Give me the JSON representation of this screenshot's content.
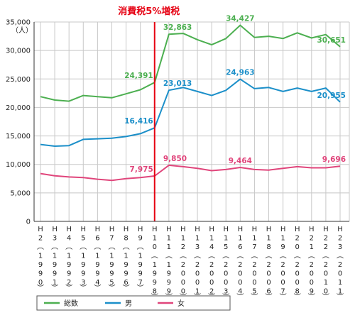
{
  "chart_data": {
    "type": "line",
    "unit_label": "（人）",
    "annotation": "消費税5%増税",
    "annotation_x_index": 8,
    "ylim": [
      0,
      35000
    ],
    "yticks": [
      "0",
      "5,000",
      "10,000",
      "15,000",
      "20,000",
      "25,000",
      "30,000",
      "35,000"
    ],
    "ytick_values": [
      0,
      5000,
      10000,
      15000,
      20000,
      25000,
      30000,
      35000
    ],
    "grid": true,
    "legend_position": "bottom",
    "categories": [
      {
        "era": [
          "H",
          "2"
        ],
        "year": [
          "1",
          "9",
          "9",
          "0"
        ]
      },
      {
        "era": [
          "H",
          "3"
        ],
        "year": [
          "1",
          "9",
          "9",
          "1"
        ]
      },
      {
        "era": [
          "H",
          "4"
        ],
        "year": [
          "1",
          "9",
          "9",
          "2"
        ]
      },
      {
        "era": [
          "H",
          "5"
        ],
        "year": [
          "1",
          "9",
          "9",
          "3"
        ]
      },
      {
        "era": [
          "H",
          "6"
        ],
        "year": [
          "1",
          "9",
          "9",
          "4"
        ]
      },
      {
        "era": [
          "H",
          "7"
        ],
        "year": [
          "1",
          "9",
          "9",
          "5"
        ]
      },
      {
        "era": [
          "H",
          "8"
        ],
        "year": [
          "1",
          "9",
          "9",
          "6"
        ]
      },
      {
        "era": [
          "H",
          "9"
        ],
        "year": [
          "1",
          "9",
          "9",
          "7"
        ]
      },
      {
        "era": [
          "H",
          "1",
          "0"
        ],
        "year": [
          "1",
          "9",
          "9",
          "8"
        ]
      },
      {
        "era": [
          "H",
          "1",
          "1"
        ],
        "year": [
          "1",
          "9",
          "9",
          "9"
        ]
      },
      {
        "era": [
          "H",
          "1",
          "2"
        ],
        "year": [
          "2",
          "0",
          "0",
          "0"
        ]
      },
      {
        "era": [
          "H",
          "1",
          "3"
        ],
        "year": [
          "2",
          "0",
          "0",
          "1"
        ]
      },
      {
        "era": [
          "H",
          "1",
          "4"
        ],
        "year": [
          "2",
          "0",
          "0",
          "2"
        ]
      },
      {
        "era": [
          "H",
          "1",
          "5"
        ],
        "year": [
          "2",
          "0",
          "0",
          "3"
        ]
      },
      {
        "era": [
          "H",
          "1",
          "6"
        ],
        "year": [
          "2",
          "0",
          "0",
          "4"
        ]
      },
      {
        "era": [
          "H",
          "1",
          "7"
        ],
        "year": [
          "2",
          "0",
          "0",
          "5"
        ]
      },
      {
        "era": [
          "H",
          "1",
          "8"
        ],
        "year": [
          "2",
          "0",
          "0",
          "6"
        ]
      },
      {
        "era": [
          "H",
          "1",
          "9"
        ],
        "year": [
          "2",
          "0",
          "0",
          "7"
        ]
      },
      {
        "era": [
          "H",
          "2",
          "0"
        ],
        "year": [
          "2",
          "0",
          "0",
          "8"
        ]
      },
      {
        "era": [
          "H",
          "2",
          "1"
        ],
        "year": [
          "2",
          "0",
          "0",
          "9"
        ]
      },
      {
        "era": [
          "H",
          "2",
          "2"
        ],
        "year": [
          "2",
          "0",
          "1",
          "0"
        ]
      },
      {
        "era": [
          "H",
          "2",
          "3"
        ],
        "year": [
          "2",
          "0",
          "1",
          "1"
        ]
      }
    ],
    "series": [
      {
        "name": "総数",
        "color": "#4caf50",
        "values": [
          21900,
          21300,
          21100,
          22100,
          21900,
          21700,
          22400,
          23100,
          24391,
          32863,
          33000,
          31900,
          31000,
          32100,
          34427,
          32300,
          32500,
          32100,
          33100,
          32200,
          32800,
          30651
        ],
        "labels": [
          {
            "index": 8,
            "text": "24,391",
            "pos": "above-left"
          },
          {
            "index": 9,
            "text": "32,863",
            "pos": "above"
          },
          {
            "index": 14,
            "text": "34,427",
            "pos": "above"
          },
          {
            "index": 21,
            "text": "30,651",
            "pos": "above"
          }
        ]
      },
      {
        "name": "男",
        "color": "#1b8fc9",
        "values": [
          13500,
          13200,
          13300,
          14400,
          14500,
          14600,
          14900,
          15400,
          16416,
          23013,
          23500,
          22800,
          22100,
          23000,
          24963,
          23300,
          23500,
          22800,
          23400,
          22800,
          23400,
          20955
        ],
        "labels": [
          {
            "index": 8,
            "text": "16,416",
            "pos": "above-left"
          },
          {
            "index": 9,
            "text": "23,013",
            "pos": "above"
          },
          {
            "index": 14,
            "text": "24,963",
            "pos": "above"
          },
          {
            "index": 21,
            "text": "20,955",
            "pos": "above"
          }
        ]
      },
      {
        "name": "女",
        "color": "#e0457b",
        "values": [
          8400,
          8000,
          7800,
          7700,
          7400,
          7200,
          7500,
          7700,
          7975,
          9850,
          9600,
          9300,
          8900,
          9100,
          9464,
          9100,
          9000,
          9300,
          9600,
          9400,
          9400,
          9696
        ],
        "labels": [
          {
            "index": 8,
            "text": "7,975",
            "pos": "above-left"
          },
          {
            "index": 9,
            "text": "9,850",
            "pos": "above"
          },
          {
            "index": 14,
            "text": "9,464",
            "pos": "above"
          },
          {
            "index": 21,
            "text": "9,696",
            "pos": "above"
          }
        ]
      }
    ]
  }
}
